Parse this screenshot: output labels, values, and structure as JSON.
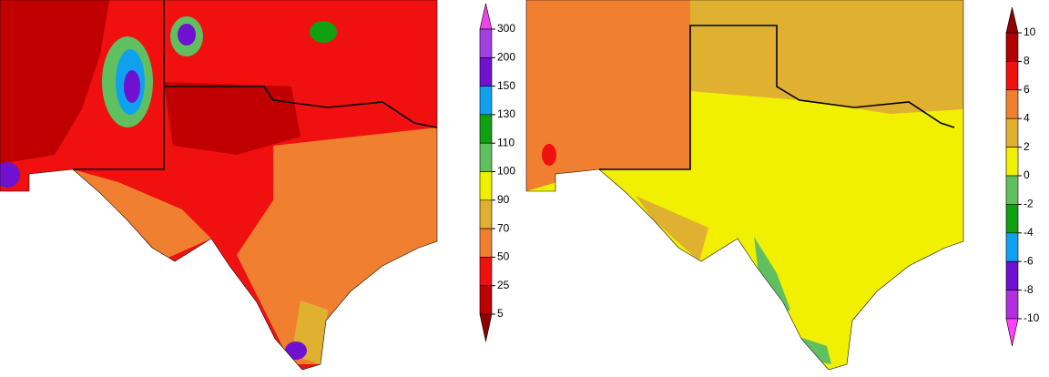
{
  "maps": [
    {
      "legend": {
        "labels": [
          300,
          200,
          150,
          130,
          110,
          100,
          90,
          70,
          50,
          25,
          5
        ],
        "colors": [
          "#ee44ee",
          "#a040e0",
          "#7010d0",
          "#10a0f0",
          "#10a010",
          "#60c060",
          "#f0f000",
          "#e0b030",
          "#f08030",
          "#f01010",
          "#c00000",
          "#900000"
        ]
      }
    },
    {
      "legend": {
        "labels": [
          10,
          8,
          6,
          4,
          2,
          0,
          -2,
          -4,
          -6,
          -8,
          -10
        ],
        "colors": [
          "#900000",
          "#b00000",
          "#f01010",
          "#f08030",
          "#e0b030",
          "#f0f000",
          "#60c060",
          "#10a010",
          "#10a0f0",
          "#7010d0",
          "#b030e0",
          "#ff40ff"
        ]
      }
    }
  ]
}
